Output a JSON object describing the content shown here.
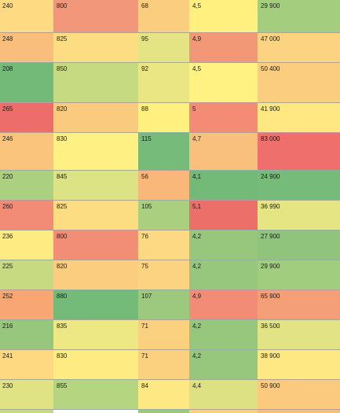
{
  "colors": {
    "green_dark": "#74bb7b",
    "green": "#94c47d",
    "green_light": "#c4d982",
    "yellow_green": "#e2e384",
    "yellow": "#feea83",
    "orange_light": "#fbd27f",
    "orange": "#f8b97a",
    "red_orange": "#f19a77",
    "red_light": "#f08e78",
    "red": "#ec7271",
    "grid_line": "#9aa4c4"
  },
  "table": {
    "rows": [
      {
        "cells": [
          {
            "text": "240",
            "color": "#feda82"
          },
          {
            "text": "800",
            "color": "#f2977a"
          },
          {
            "text": "68",
            "color": "#fbcd7f"
          },
          {
            "text": "4,5",
            "color": "#fff080"
          },
          {
            "text": "29 900",
            "color": "#a4ce7e"
          }
        ]
      },
      {
        "cells": [
          {
            "text": "248",
            "color": "#f9be7c"
          },
          {
            "text": "825",
            "color": "#fcdd81"
          },
          {
            "text": "95",
            "color": "#e4e484"
          },
          {
            "text": "4,9",
            "color": "#f39877"
          },
          {
            "text": "47 000",
            "color": "#fcd381"
          }
        ]
      },
      {
        "cells": [
          {
            "text": "208",
            "color": "#73ba79"
          },
          {
            "text": "850",
            "color": "#c5da81"
          },
          {
            "text": "92",
            "color": "#ebe684"
          },
          {
            "text": "4,5",
            "color": "#fff283"
          },
          {
            "text": "50 400",
            "color": "#fbcd7f"
          }
        ]
      },
      {
        "cells": [
          {
            "text": "265",
            "color": "#ed6d6a"
          },
          {
            "text": "820",
            "color": "#facb7e"
          },
          {
            "text": "88",
            "color": "#fff080"
          },
          {
            "text": "5",
            "color": "#f38b75"
          },
          {
            "text": "41 900",
            "color": "#ffe882"
          }
        ]
      },
      {
        "cells": [
          {
            "text": "246",
            "color": "#fac47d"
          },
          {
            "text": "830",
            "color": "#fef083"
          },
          {
            "text": "115",
            "color": "#76bb7a"
          },
          {
            "text": "4,7",
            "color": "#f9c07d"
          },
          {
            "text": "83 000",
            "color": "#ee6f6b"
          }
        ]
      },
      {
        "cells": [
          {
            "text": "220",
            "color": "#abd07f"
          },
          {
            "text": "845",
            "color": "#dbe385"
          },
          {
            "text": "56",
            "color": "#f9b77a"
          },
          {
            "text": "4,1",
            "color": "#73ba79"
          },
          {
            "text": "24 900",
            "color": "#76bb7a"
          }
        ]
      },
      {
        "cells": [
          {
            "text": "260",
            "color": "#f28c76"
          },
          {
            "text": "825",
            "color": "#fcdd81"
          },
          {
            "text": "105",
            "color": "#a9cf7f"
          },
          {
            "text": "5,1",
            "color": "#ed6f6a"
          },
          {
            "text": "36 990",
            "color": "#e5e584"
          }
        ]
      },
      {
        "cells": [
          {
            "text": "236",
            "color": "#feec83"
          },
          {
            "text": "800",
            "color": "#f38e76"
          },
          {
            "text": "76",
            "color": "#fcd982"
          },
          {
            "text": "4,2",
            "color": "#97c77d"
          },
          {
            "text": "27 900",
            "color": "#90c47c"
          }
        ]
      },
      {
        "cells": [
          {
            "text": "225",
            "color": "#c7da82"
          },
          {
            "text": "820",
            "color": "#fbcd7f"
          },
          {
            "text": "75",
            "color": "#fcd381"
          },
          {
            "text": "4,2",
            "color": "#97c77d"
          },
          {
            "text": "29 900",
            "color": "#a1cd7e"
          }
        ]
      },
      {
        "cells": [
          {
            "text": "252",
            "color": "#f7a674"
          },
          {
            "text": "880",
            "color": "#74bb79"
          },
          {
            "text": "107",
            "color": "#9cc97e"
          },
          {
            "text": "4,9",
            "color": "#f28c76"
          },
          {
            "text": "65 900",
            "color": "#f49f77"
          }
        ]
      },
      {
        "cells": [
          {
            "text": "216",
            "color": "#97c77d"
          },
          {
            "text": "835",
            "color": "#ede884"
          },
          {
            "text": "71",
            "color": "#fbd07f"
          },
          {
            "text": "4,2",
            "color": "#97c77d"
          },
          {
            "text": "36 500",
            "color": "#e2e384"
          }
        ]
      },
      {
        "cells": [
          {
            "text": "241",
            "color": "#fed981"
          },
          {
            "text": "830",
            "color": "#feec83"
          },
          {
            "text": "71",
            "color": "#fbd07f"
          },
          {
            "text": "4,2",
            "color": "#97c77d"
          },
          {
            "text": "38 900",
            "color": "#fee883"
          }
        ]
      },
      {
        "cells": [
          {
            "text": "230",
            "color": "#dfe384"
          },
          {
            "text": "855",
            "color": "#b6d580"
          },
          {
            "text": "84",
            "color": "#fee883"
          },
          {
            "text": "4,4",
            "color": "#dde183"
          },
          {
            "text": "50 900",
            "color": "#fbca7f"
          }
        ]
      },
      {
        "cells": [
          {
            "text": "",
            "color": "#c7da82"
          },
          {
            "text": "",
            "color": "#ffffff"
          },
          {
            "text": "",
            "color": "#9cc97e"
          },
          {
            "text": "",
            "color": "#fbd07f"
          },
          {
            "text": "",
            "color": "#f9be7c"
          }
        ]
      }
    ]
  }
}
